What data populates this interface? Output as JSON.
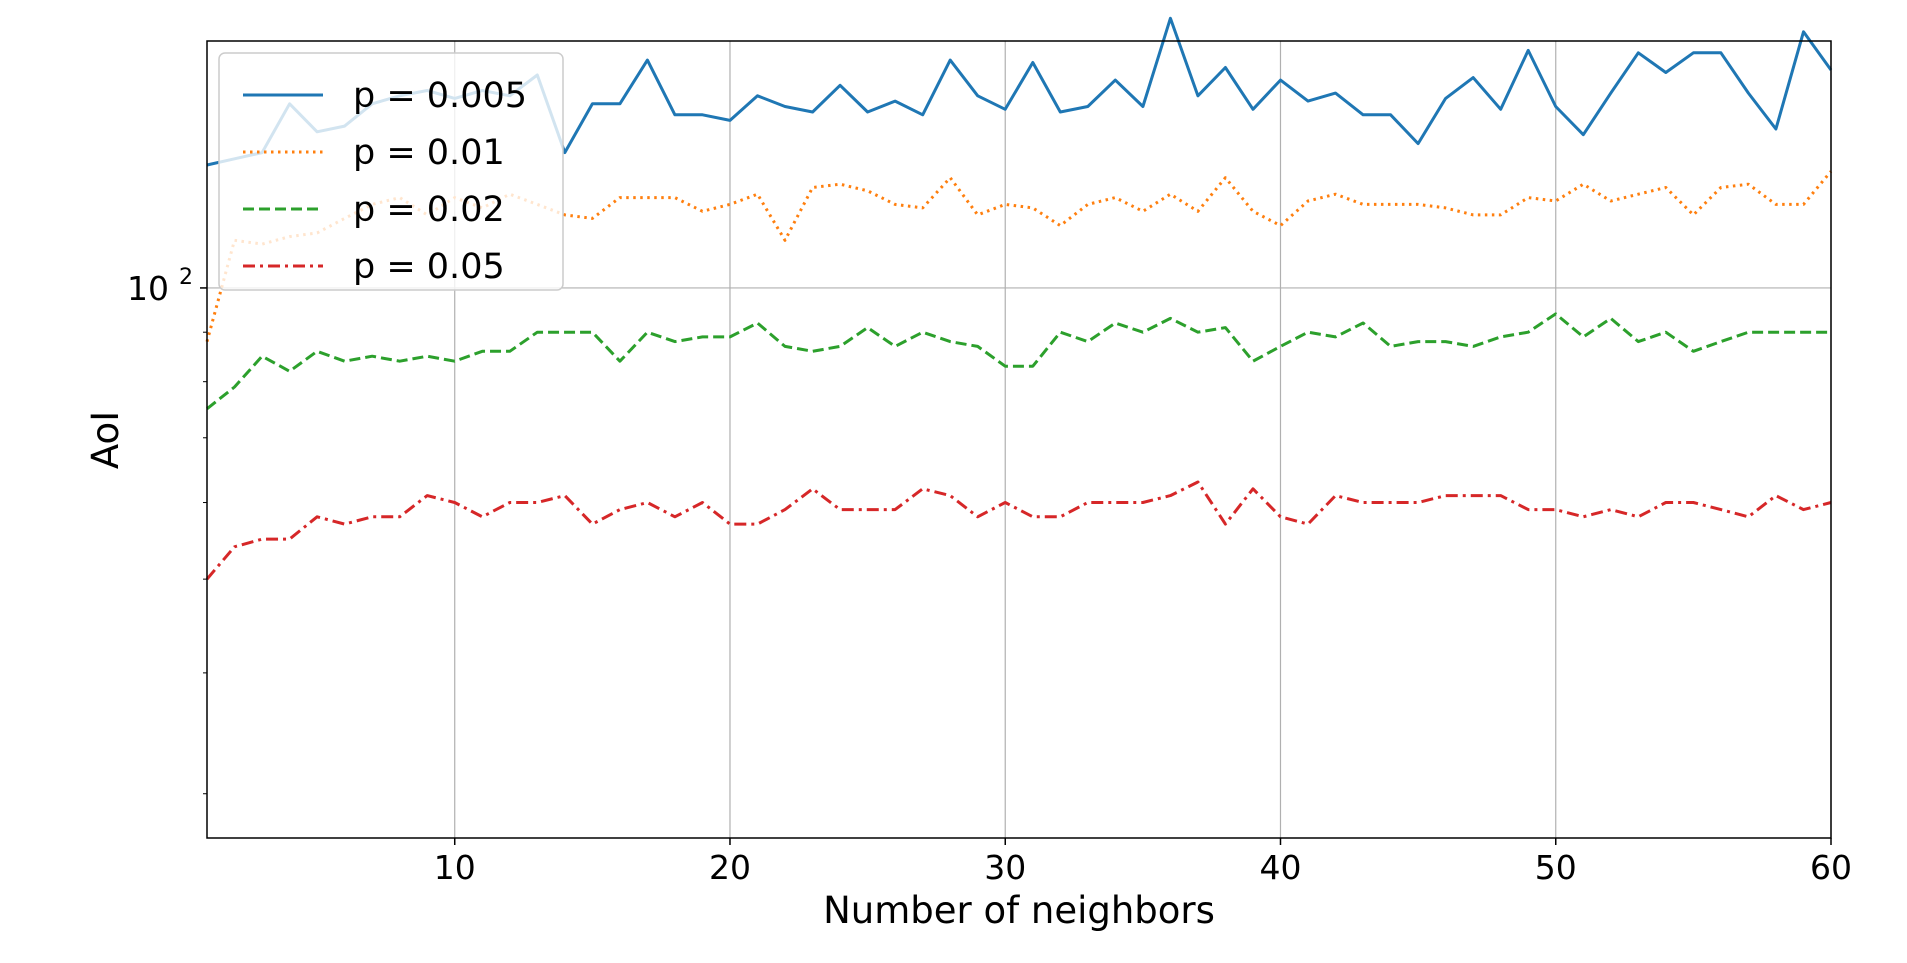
{
  "chart_data": {
    "type": "line",
    "title": "",
    "xlabel": "Number of neighbors",
    "ylabel": "AoI",
    "xlim": [
      1,
      60
    ],
    "ylim": [
      27,
      180
    ],
    "yscale": "log",
    "grid": true,
    "legend_position": "top-left",
    "x_ticks": [
      {
        "value": 10,
        "label": "10"
      },
      {
        "value": 20,
        "label": "20"
      },
      {
        "value": 30,
        "label": "30"
      },
      {
        "value": 40,
        "label": "40"
      },
      {
        "value": 50,
        "label": "50"
      },
      {
        "value": 60,
        "label": "60"
      }
    ],
    "y_major_ticks": [
      {
        "value": 100,
        "base": "10",
        "exponent": "2"
      }
    ],
    "y_minor_ticks": [
      30,
      40,
      50,
      60,
      70,
      80,
      90,
      200
    ],
    "x": [
      1,
      2,
      3,
      4,
      5,
      6,
      7,
      8,
      9,
      10,
      11,
      12,
      13,
      14,
      15,
      16,
      17,
      18,
      19,
      20,
      21,
      22,
      23,
      24,
      25,
      26,
      27,
      28,
      29,
      30,
      31,
      32,
      33,
      34,
      35,
      36,
      37,
      38,
      39,
      40,
      41,
      42,
      43,
      44,
      45,
      46,
      47,
      48,
      49,
      50,
      51,
      52,
      53,
      54,
      55,
      56,
      57,
      58,
      59,
      60
    ],
    "series": [
      {
        "name": "p = 0.005",
        "color": "#1f77b4",
        "dash": "solid",
        "values": [
          134,
          136,
          138,
          155,
          145,
          147,
          155,
          158,
          160,
          157,
          160,
          158,
          166,
          138,
          155,
          155,
          172,
          151,
          151,
          149,
          158,
          154,
          152,
          162,
          152,
          156,
          151,
          172,
          158,
          153,
          171,
          152,
          154,
          164,
          154,
          190,
          158,
          169,
          153,
          164,
          156,
          159,
          151,
          151,
          141,
          157,
          165,
          153,
          176,
          154,
          144,
          159,
          175,
          167,
          175,
          175,
          159,
          146,
          184,
          168
        ],
        "labels": []
      },
      {
        "name": "p = 0.01",
        "color": "#ff7f0e",
        "dash": "dotted",
        "values": [
          88,
          112,
          111,
          113,
          114,
          118,
          122,
          124,
          119,
          124,
          121,
          125,
          122,
          119,
          118,
          124,
          124,
          124,
          120,
          122,
          125,
          112,
          127,
          128,
          126,
          122,
          121,
          130,
          119,
          122,
          121,
          116,
          122,
          124,
          120,
          125,
          120,
          130,
          120,
          116,
          123,
          125,
          122,
          122,
          122,
          121,
          119,
          119,
          124,
          123,
          128,
          123,
          125,
          127,
          119,
          127,
          128,
          122,
          122,
          132
        ],
        "labels": []
      },
      {
        "name": "p = 0.02",
        "color": "#2ca02c",
        "dash": "dashed",
        "values": [
          75,
          79,
          85,
          82,
          86,
          84,
          85,
          84,
          85,
          84,
          86,
          86,
          90,
          90,
          90,
          84,
          90,
          88,
          89,
          89,
          92,
          87,
          86,
          87,
          91,
          87,
          90,
          88,
          87,
          83,
          83,
          90,
          88,
          92,
          90,
          93,
          90,
          91,
          84,
          87,
          90,
          89,
          92,
          87,
          88,
          88,
          87,
          89,
          90,
          94,
          89,
          93,
          88,
          90,
          86,
          88,
          90,
          90,
          90,
          90
        ],
        "labels": []
      },
      {
        "name": "p = 0.05",
        "color": "#d62728",
        "dash": "dashdot",
        "values": [
          50,
          54,
          55,
          55,
          58,
          57,
          58,
          58,
          61,
          60,
          58,
          60,
          60,
          61,
          57,
          59,
          60,
          58,
          60,
          57,
          57,
          59,
          62,
          59,
          59,
          59,
          62,
          61,
          58,
          60,
          58,
          58,
          60,
          60,
          60,
          61,
          63,
          57,
          62,
          58,
          57,
          61,
          60,
          60,
          60,
          61,
          61,
          61,
          59,
          59,
          58,
          59,
          58,
          60,
          60,
          59,
          58,
          61,
          59,
          60
        ],
        "labels": []
      }
    ]
  }
}
